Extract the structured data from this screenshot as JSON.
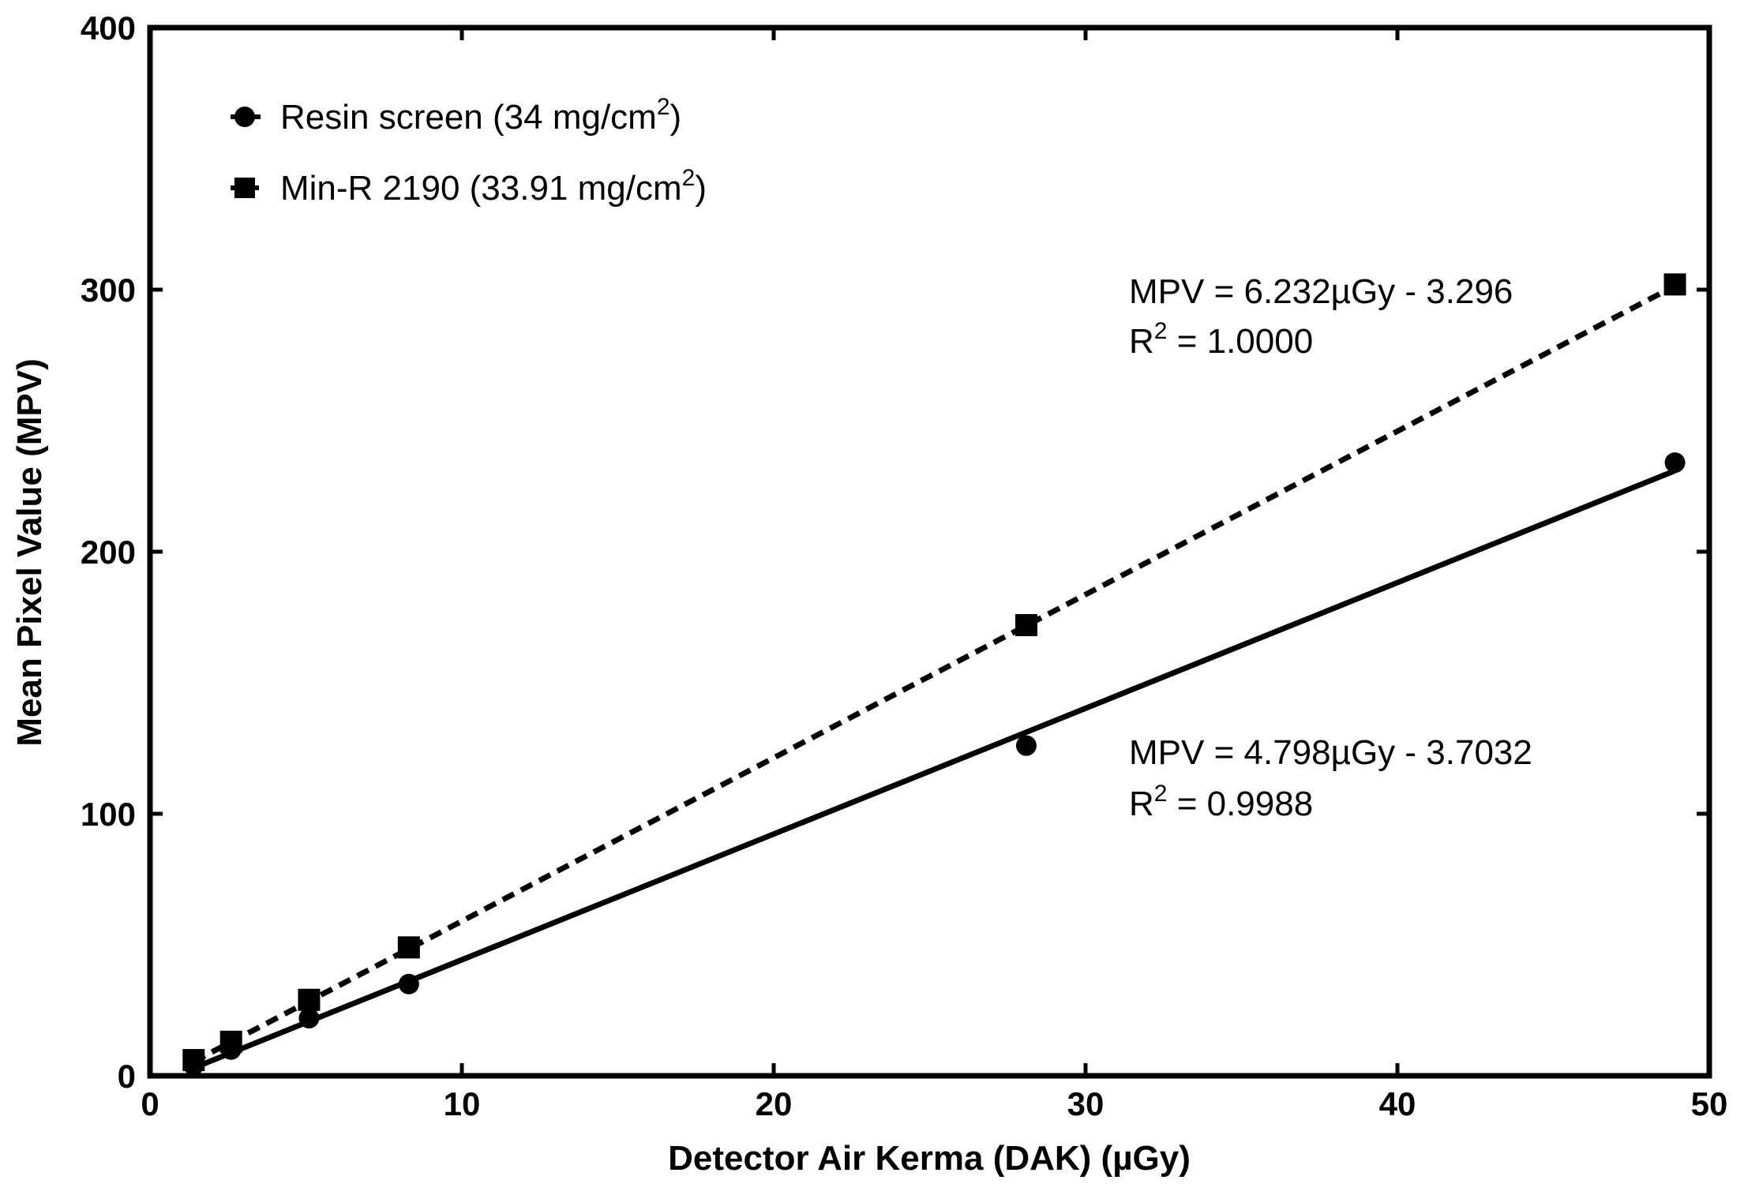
{
  "chart_data": {
    "type": "scatter",
    "xlabel": "Detector Air Kerma (DAK) (µGy)",
    "ylabel": "Mean Pixel Value (MPV)",
    "xlim": [
      0,
      50
    ],
    "ylim": [
      0,
      400
    ],
    "x_ticks": [
      0,
      10,
      20,
      30,
      40,
      50
    ],
    "y_ticks": [
      0,
      100,
      200,
      300,
      400
    ],
    "x_tick_labels": [
      "0",
      "10",
      "20",
      "30",
      "40",
      "50"
    ],
    "y_tick_labels": [
      "0",
      "100",
      "200",
      "300",
      "400"
    ],
    "grid": false,
    "legend_position": "top-left",
    "series": [
      {
        "name": "Resin screen (34 mg/cm2)",
        "legend_main": "Resin screen (34 mg/cm",
        "legend_sup": "2",
        "legend_tail": ")",
        "marker": "circle",
        "line_style": "solid",
        "x": [
          1.4,
          2.6,
          5.1,
          8.3,
          28.1,
          48.9
        ],
        "y": [
          4,
          10,
          22,
          35,
          126,
          234
        ],
        "fit": {
          "slope": 4.798,
          "intercept": -3.7032
        }
      },
      {
        "name": "Min-R 2190 (33.91 mg/cm2)",
        "legend_main": "Min-R 2190 (33.91 mg/cm",
        "legend_sup": "2",
        "legend_tail": ")",
        "marker": "square",
        "line_style": "dashed",
        "x": [
          1.4,
          2.6,
          5.1,
          8.3,
          28.1,
          48.9
        ],
        "y": [
          6,
          13,
          29,
          49,
          172,
          302
        ],
        "fit": {
          "slope": 6.232,
          "intercept": -3.296
        }
      }
    ],
    "annotations": [
      {
        "equation": "MPV = 6.232µGy - 3.296",
        "r2_prefix": "R",
        "r2_sup": "2",
        "r2_value": " = 1.0000"
      },
      {
        "equation": "MPV = 4.798µGy - 3.7032",
        "r2_prefix": "R",
        "r2_sup": "2",
        "r2_value": " = 0.9988"
      }
    ]
  }
}
